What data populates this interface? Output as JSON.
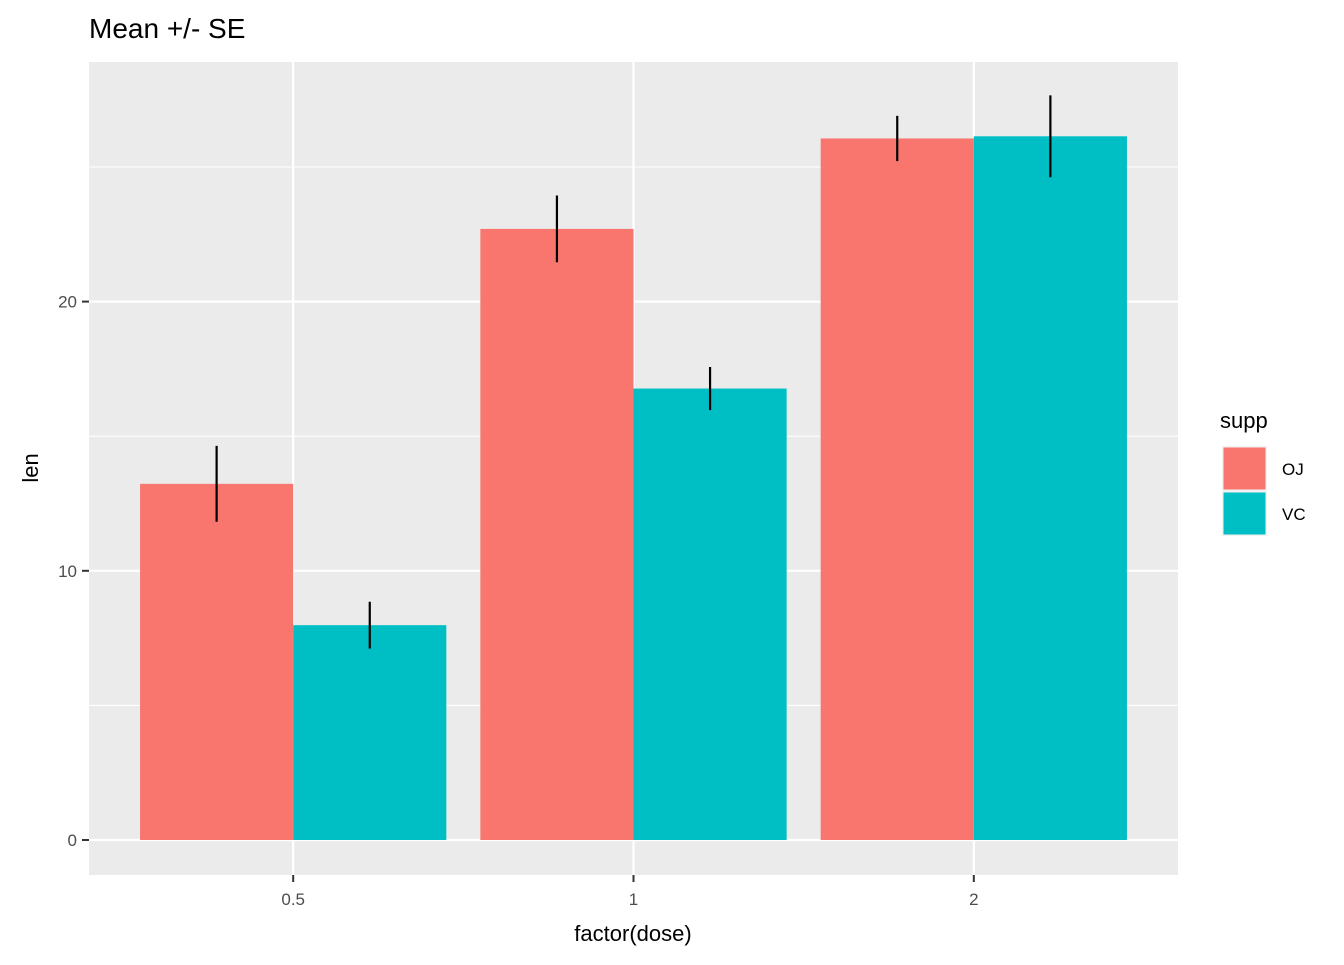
{
  "chart_data": {
    "type": "bar",
    "title": "Mean +/- SE",
    "xlabel": "factor(dose)",
    "ylabel": "len",
    "categories": [
      "0.5",
      "1",
      "2"
    ],
    "series": [
      {
        "name": "OJ",
        "color": "#F8766D",
        "values": [
          13.23,
          22.7,
          26.06
        ],
        "se": [
          1.41,
          1.24,
          0.84
        ]
      },
      {
        "name": "VC",
        "color": "#00BFC4",
        "values": [
          7.98,
          16.77,
          26.14
        ],
        "se": [
          0.87,
          0.8,
          1.52
        ]
      }
    ],
    "y_ticks": [
      0,
      10,
      20
    ],
    "ylim": [
      -1.3,
      28.9
    ],
    "legend": {
      "title": "supp",
      "position": "right"
    },
    "grid": true,
    "panel_background": "#EBEBEB"
  }
}
